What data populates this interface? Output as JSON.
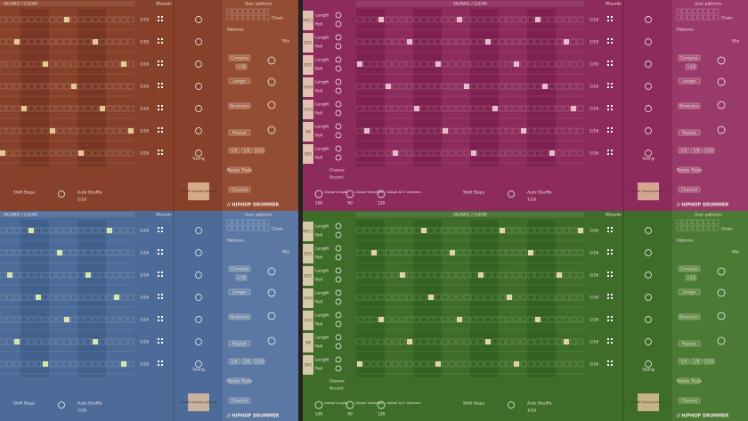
{
  "tracks": [
    "PRC1",
    "BD1",
    "BD2",
    "OHH",
    "CHH",
    "SN",
    "SN2"
  ],
  "knob_labels": [
    "Length",
    "Roll"
  ],
  "step_rate": "1/16",
  "swing": "Swing",
  "groove": "Global Groove Amount",
  "brand": "// HIPHOP DRUMMER",
  "patterns": "Patterns",
  "fills": {
    "title": "Fills",
    "buttons": [
      "Complex",
      "+16",
      "Longer",
      "Stretchen",
      "Repeat",
      "Rotate Triple",
      "Channel"
    ],
    "rates": [
      "1/4",
      "1/8",
      "1/16"
    ]
  },
  "footer": {
    "shift": "Shift Steps",
    "auto_shuffle": "Auto Shuffle",
    "chance": "Chance",
    "accent": "Accent",
    "globals": [
      "Global Length",
      "Global Velocities",
      "Global ACC Volumes"
    ],
    "global_values": [
      100,
      90,
      128
    ]
  },
  "header": {
    "silence": "SILENCE / CLEAR",
    "wizards": "Wizards",
    "user_patterns": "User patterns",
    "chain": "Chain"
  }
}
